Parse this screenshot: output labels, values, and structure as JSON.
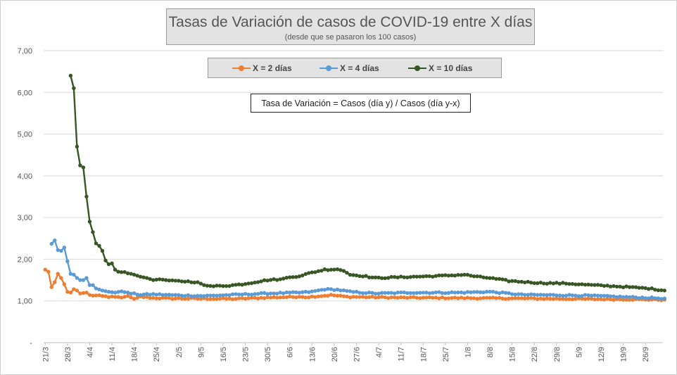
{
  "chart_data": {
    "type": "line",
    "title": "Tasas de Variación de casos de COVID-19 entre X días",
    "subtitle": "(desde que se pasaron los 100 casos)",
    "annotation": "Tasa de Variación = Casos (día y) / Casos (día y-x)",
    "ylim": [
      0,
      7
    ],
    "yticks": [
      "-",
      "1,00",
      "2,00",
      "3,00",
      "4,00",
      "5,00",
      "6,00",
      "7,00"
    ],
    "xticks": [
      "21/3",
      "28/3",
      "4/4",
      "11/4",
      "18/4",
      "25/4",
      "2/5",
      "9/5",
      "16/5",
      "23/5",
      "30/5",
      "6/6",
      "13/6",
      "20/6",
      "27/6",
      "4/7",
      "11/7",
      "18/7",
      "25/7",
      "1/8",
      "8/8",
      "15/8",
      "22/8",
      "29/8",
      "5/9",
      "12/9",
      "19/9",
      "26/9"
    ],
    "x_start": "21/3",
    "x_points": 195,
    "grid": "horizontal",
    "legend": "top",
    "series": [
      {
        "name": "X = 2 días",
        "color": "#ed7d31",
        "keypoints": [
          [
            0,
            1.75
          ],
          [
            1,
            1.7
          ],
          [
            2,
            1.33
          ],
          [
            3,
            1.45
          ],
          [
            4,
            1.65
          ],
          [
            5,
            1.55
          ],
          [
            6,
            1.4
          ],
          [
            7,
            1.22
          ],
          [
            8,
            1.2
          ],
          [
            9,
            1.28
          ],
          [
            10,
            1.25
          ],
          [
            11,
            1.18
          ],
          [
            13,
            1.2
          ],
          [
            14,
            1.14
          ],
          [
            20,
            1.1
          ],
          [
            24,
            1.08
          ],
          [
            26,
            1.12
          ],
          [
            28,
            1.05
          ],
          [
            30,
            1.1
          ],
          [
            34,
            1.07
          ],
          [
            40,
            1.06
          ],
          [
            60,
            1.05
          ],
          [
            70,
            1.08
          ],
          [
            80,
            1.1
          ],
          [
            82,
            1.09
          ],
          [
            90,
            1.14
          ],
          [
            95,
            1.1
          ],
          [
            110,
            1.08
          ],
          [
            150,
            1.06
          ],
          [
            195,
            1.03
          ]
        ]
      },
      {
        "name": "X = 4 días",
        "color": "#5b9bd5",
        "keypoints": [
          [
            2,
            2.37
          ],
          [
            3,
            2.45
          ],
          [
            4,
            2.22
          ],
          [
            5,
            2.2
          ],
          [
            6,
            2.28
          ],
          [
            7,
            1.95
          ],
          [
            8,
            1.65
          ],
          [
            9,
            1.63
          ],
          [
            10,
            1.55
          ],
          [
            11,
            1.5
          ],
          [
            12,
            1.5
          ],
          [
            13,
            1.55
          ],
          [
            14,
            1.38
          ],
          [
            15,
            1.38
          ],
          [
            16,
            1.3
          ],
          [
            18,
            1.25
          ],
          [
            20,
            1.22
          ],
          [
            22,
            1.2
          ],
          [
            24,
            1.23
          ],
          [
            26,
            1.19
          ],
          [
            30,
            1.15
          ],
          [
            34,
            1.16
          ],
          [
            40,
            1.14
          ],
          [
            50,
            1.12
          ],
          [
            60,
            1.15
          ],
          [
            70,
            1.18
          ],
          [
            80,
            1.2
          ],
          [
            84,
            1.22
          ],
          [
            88,
            1.28
          ],
          [
            92,
            1.27
          ],
          [
            96,
            1.22
          ],
          [
            104,
            1.18
          ],
          [
            115,
            1.2
          ],
          [
            130,
            1.2
          ],
          [
            140,
            1.22
          ],
          [
            150,
            1.15
          ],
          [
            170,
            1.13
          ],
          [
            195,
            1.06
          ]
        ]
      },
      {
        "name": "X = 10 días",
        "color": "#375623",
        "keypoints": [
          [
            8,
            6.4
          ],
          [
            9,
            6.1
          ],
          [
            10,
            4.7
          ],
          [
            11,
            4.25
          ],
          [
            12,
            4.2
          ],
          [
            13,
            3.5
          ],
          [
            14,
            2.9
          ],
          [
            15,
            2.65
          ],
          [
            16,
            2.38
          ],
          [
            17,
            2.32
          ],
          [
            18,
            2.2
          ],
          [
            19,
            1.97
          ],
          [
            20,
            1.88
          ],
          [
            21,
            1.9
          ],
          [
            22,
            1.75
          ],
          [
            23,
            1.7
          ],
          [
            25,
            1.68
          ],
          [
            28,
            1.63
          ],
          [
            30,
            1.58
          ],
          [
            32,
            1.55
          ],
          [
            34,
            1.5
          ],
          [
            36,
            1.52
          ],
          [
            38,
            1.5
          ],
          [
            40,
            1.48
          ],
          [
            44,
            1.47
          ],
          [
            48,
            1.45
          ],
          [
            50,
            1.38
          ],
          [
            52,
            1.35
          ],
          [
            58,
            1.37
          ],
          [
            62,
            1.4
          ],
          [
            66,
            1.45
          ],
          [
            70,
            1.5
          ],
          [
            74,
            1.52
          ],
          [
            76,
            1.55
          ],
          [
            80,
            1.6
          ],
          [
            84,
            1.68
          ],
          [
            88,
            1.75
          ],
          [
            92,
            1.76
          ],
          [
            94,
            1.72
          ],
          [
            96,
            1.63
          ],
          [
            100,
            1.6
          ],
          [
            104,
            1.55
          ],
          [
            108,
            1.56
          ],
          [
            116,
            1.58
          ],
          [
            124,
            1.6
          ],
          [
            132,
            1.63
          ],
          [
            136,
            1.58
          ],
          [
            140,
            1.55
          ],
          [
            146,
            1.48
          ],
          [
            152,
            1.45
          ],
          [
            156,
            1.43
          ],
          [
            164,
            1.42
          ],
          [
            172,
            1.38
          ],
          [
            180,
            1.35
          ],
          [
            184,
            1.33
          ],
          [
            190,
            1.3
          ],
          [
            195,
            1.25
          ]
        ]
      }
    ]
  }
}
